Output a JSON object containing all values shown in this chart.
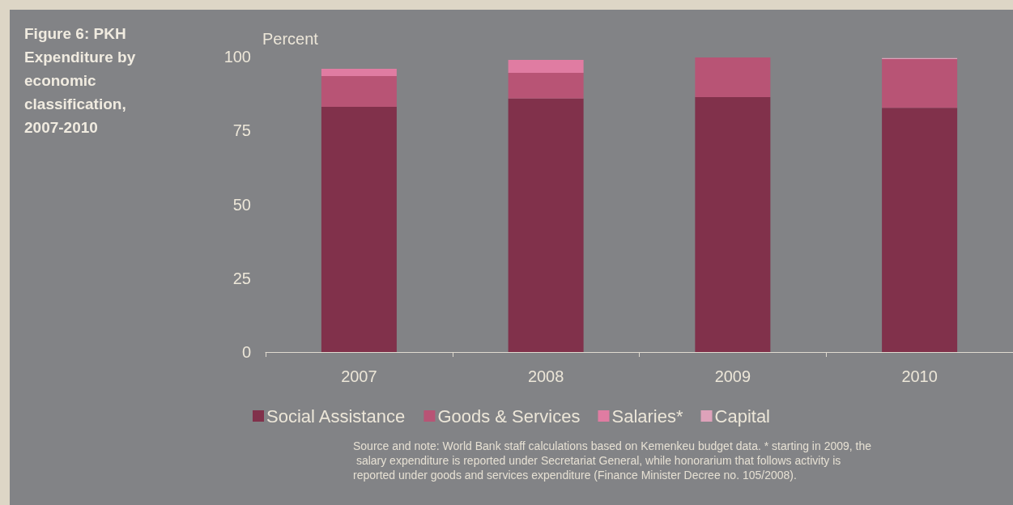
{
  "chart_data": {
    "type": "bar",
    "title": "Figure 6: PKH Expenditure by economic classification, 2007-2010",
    "ylabel": "Percent",
    "categories": [
      "2007",
      "2008",
      "2009",
      "2010"
    ],
    "series": [
      {
        "name": "Social Assistance",
        "color": "#81314b",
        "values": [
          83,
          85.8,
          86.3,
          82.7
        ]
      },
      {
        "name": "Goods & Services",
        "color": "#b85475",
        "values": [
          10.4,
          8.7,
          13.4,
          16.5
        ]
      },
      {
        "name": "Salaries*",
        "color": "#e07ca2",
        "values": [
          2.5,
          4.4,
          null,
          null
        ]
      },
      {
        "name": "Capital",
        "color": "#dea2ba",
        "values": [
          null,
          null,
          null,
          0.3
        ]
      }
    ],
    "stacked": true,
    "ylim": [
      0,
      100
    ],
    "yticks": [
      0,
      25,
      50,
      75,
      100
    ],
    "grid": false,
    "legend": "bottom",
    "annotations": [
      "Source and note: World Bank staff calculations based on Kemenkeu budget data. * starting in 2009, the salary expenditure is reported under Secretariat General, while honorarium that follows activity is reported under goods and services expenditure (Finance Minister Decree no. 105/2008)."
    ]
  }
}
